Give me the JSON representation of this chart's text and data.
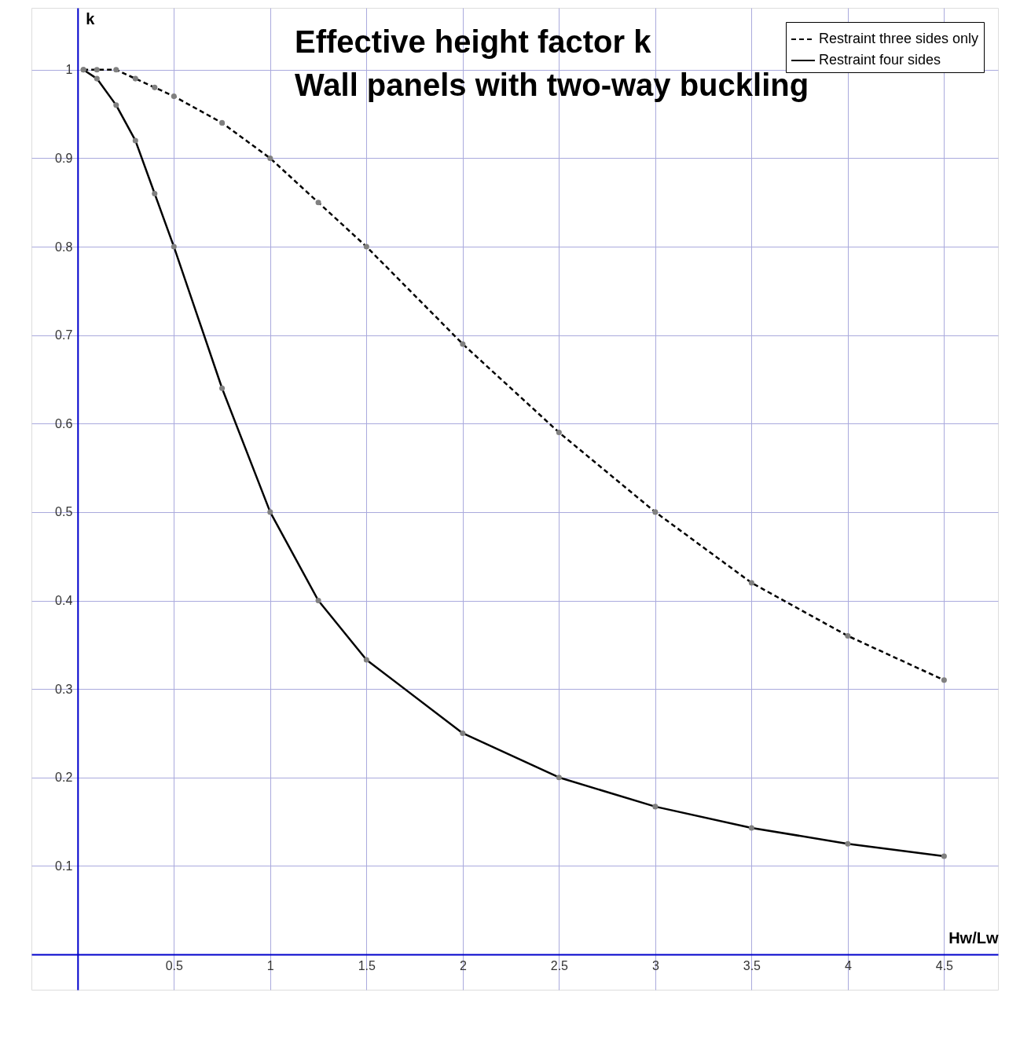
{
  "chart_data": {
    "type": "line",
    "title": "Effective height factor k",
    "subtitle": "Wall panels with two-way buckling",
    "xlabel": "Hw/Lw",
    "ylabel": "k",
    "xlim": [
      -0.24,
      4.78
    ],
    "ylim": [
      -0.04,
      1.07
    ],
    "xticks": [
      0.5,
      1,
      1.5,
      2,
      2.5,
      3,
      3.5,
      4,
      4.5
    ],
    "yticks": [
      0.1,
      0.2,
      0.3,
      0.4,
      0.5,
      0.6,
      0.7,
      0.8,
      0.9,
      1
    ],
    "grid": true,
    "legend": "top right",
    "marker": "circle",
    "series": [
      {
        "name": "Restraint three sides only",
        "color": "#000000",
        "line_style": "dashed",
        "x": [
          0.03,
          0.1,
          0.2,
          0.3,
          0.4,
          0.5,
          0.75,
          1,
          1.25,
          1.5,
          2,
          2.5,
          3,
          3.5,
          4,
          4.5
        ],
        "values": [
          1,
          1,
          1,
          0.99,
          0.98,
          0.97,
          0.94,
          0.9,
          0.85,
          0.8,
          0.69,
          0.59,
          0.5,
          0.42,
          0.36,
          0.31
        ]
      },
      {
        "name": "Restraint four sides",
        "color": "#000000",
        "line_style": "solid",
        "x": [
          0.03,
          0.1,
          0.2,
          0.3,
          0.4,
          0.5,
          0.75,
          1,
          1.25,
          1.5,
          2,
          2.5,
          3,
          3.5,
          4,
          4.5
        ],
        "values": [
          1,
          0.99,
          0.96,
          0.92,
          0.86,
          0.8,
          0.64,
          0.5,
          0.4,
          0.333,
          0.25,
          0.2,
          0.167,
          0.143,
          0.125,
          0.111
        ]
      }
    ]
  }
}
